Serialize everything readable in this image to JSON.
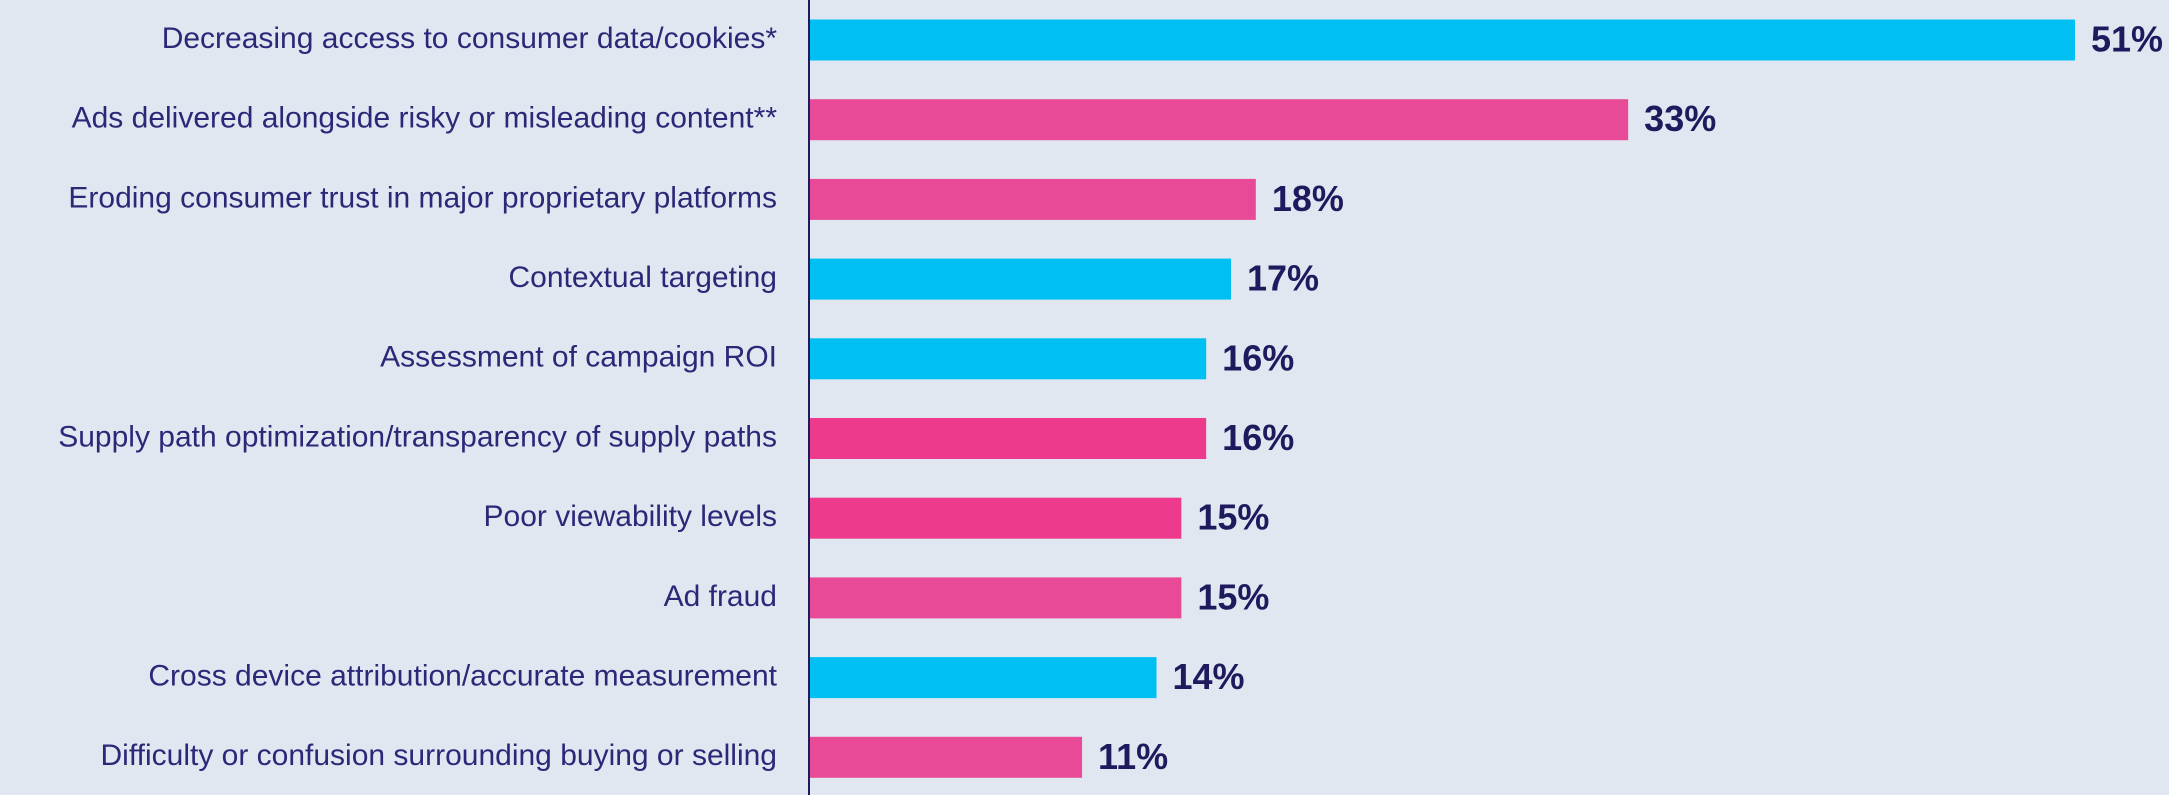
{
  "chart_data": {
    "type": "barh",
    "categories": [
      "Decreasing access to consumer data/cookies*",
      "Ads delivered alongside risky or misleading content**",
      "Eroding consumer trust in major proprietary platforms",
      "Contextual targeting",
      "Assessment of campaign ROI",
      "Supply path optimization/transparency of supply paths",
      "Poor viewability levels",
      "Ad fraud",
      "Cross device attribution/accurate measurement",
      "Difficulty or confusion surrounding buying or selling"
    ],
    "values": [
      51,
      33,
      18,
      17,
      16,
      16,
      15,
      15,
      14,
      11
    ],
    "value_labels": [
      "51%",
      "33%",
      "18%",
      "17%",
      "16%",
      "16%",
      "15%",
      "15%",
      "14%",
      "11%"
    ],
    "colors": [
      "#00c0f3",
      "#e84a97",
      "#e84a97",
      "#00c0f3",
      "#00c0f3",
      "#ee3a8c",
      "#ee3a8c",
      "#e84a97",
      "#00c0f3",
      "#e84a97"
    ]
  }
}
